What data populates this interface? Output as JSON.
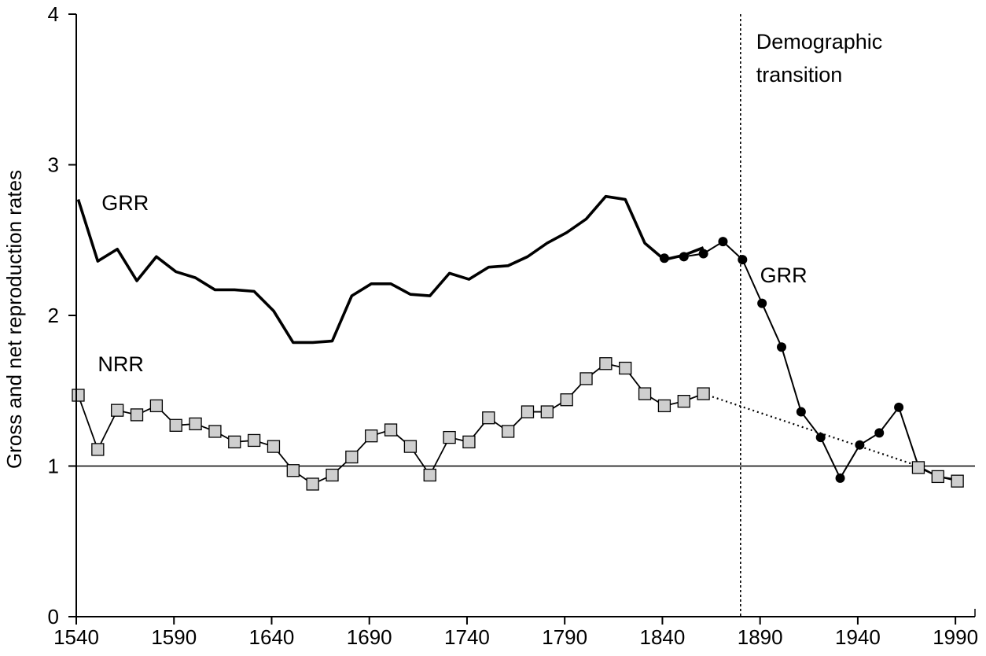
{
  "chart_data": {
    "type": "line",
    "title": "",
    "xlabel": "",
    "ylabel": "Gross and net reproduction rates",
    "xlim": [
      1540,
      2000
    ],
    "ylim": [
      0,
      4
    ],
    "x_ticks": [
      1540,
      1590,
      1640,
      1690,
      1740,
      1790,
      1840,
      1890,
      1940,
      1990
    ],
    "y_ticks": [
      0,
      1,
      2,
      3,
      4
    ],
    "grid": false,
    "reference_line_y": 1,
    "transition_marker_x": 1880,
    "series": [
      {
        "name": "GRR",
        "style": "thick-line",
        "x": [
          1541,
          1551,
          1561,
          1571,
          1581,
          1591,
          1601,
          1611,
          1621,
          1631,
          1641,
          1651,
          1661,
          1671,
          1681,
          1691,
          1701,
          1711,
          1721,
          1731,
          1741,
          1751,
          1761,
          1771,
          1781,
          1791,
          1801,
          1811,
          1821,
          1831,
          1841,
          1851,
          1861
        ],
        "y": [
          2.77,
          2.36,
          2.44,
          2.23,
          2.39,
          2.29,
          2.25,
          2.17,
          2.17,
          2.16,
          2.03,
          1.82,
          1.82,
          1.83,
          2.13,
          2.21,
          2.21,
          2.14,
          2.13,
          2.28,
          2.24,
          2.32,
          2.33,
          2.39,
          2.48,
          2.55,
          2.64,
          2.79,
          2.77,
          2.48,
          2.37,
          2.4,
          2.45
        ]
      },
      {
        "name": "GRR",
        "style": "line-with-dots",
        "x": [
          1841,
          1851,
          1861,
          1871,
          1881,
          1891,
          1901,
          1911,
          1921,
          1931,
          1941,
          1951,
          1961,
          1971,
          1981,
          1991
        ],
        "y": [
          2.38,
          2.39,
          2.41,
          2.49,
          2.37,
          2.08,
          1.79,
          1.36,
          1.19,
          0.92,
          1.14,
          1.22,
          1.39,
          1.0,
          0.93,
          0.91
        ]
      },
      {
        "name": "NRR",
        "style": "line-with-squares",
        "x": [
          1541,
          1551,
          1561,
          1571,
          1581,
          1591,
          1601,
          1611,
          1621,
          1631,
          1641,
          1651,
          1661,
          1671,
          1681,
          1691,
          1701,
          1711,
          1721,
          1731,
          1741,
          1751,
          1761,
          1771,
          1781,
          1791,
          1801,
          1811,
          1821,
          1831,
          1841,
          1851,
          1861
        ],
        "y": [
          1.47,
          1.11,
          1.37,
          1.34,
          1.4,
          1.27,
          1.28,
          1.23,
          1.16,
          1.17,
          1.13,
          0.97,
          0.88,
          0.94,
          1.06,
          1.2,
          1.24,
          1.13,
          0.94,
          1.19,
          1.16,
          1.32,
          1.23,
          1.36,
          1.36,
          1.44,
          1.58,
          1.68,
          1.65,
          1.48,
          1.4,
          1.43,
          1.48
        ]
      },
      {
        "name": "NRR",
        "style": "dotted-interpolation",
        "x": [
          1861,
          1971
        ],
        "y": [
          1.48,
          1.0
        ]
      },
      {
        "name": "NRR",
        "style": "squares-after-transition",
        "x": [
          1971,
          1981,
          1991
        ],
        "y": [
          0.99,
          0.93,
          0.9
        ]
      }
    ],
    "annotations": [
      {
        "text": "GRR",
        "x": 1553,
        "y": 2.7
      },
      {
        "text": "GRR",
        "x": 1890,
        "y": 2.22
      },
      {
        "text": "NRR",
        "x": 1551,
        "y": 1.63
      },
      {
        "text": "Demographic",
        "x": 1888,
        "y": 3.77
      },
      {
        "text": "transition",
        "x": 1888,
        "y": 3.55
      }
    ]
  }
}
